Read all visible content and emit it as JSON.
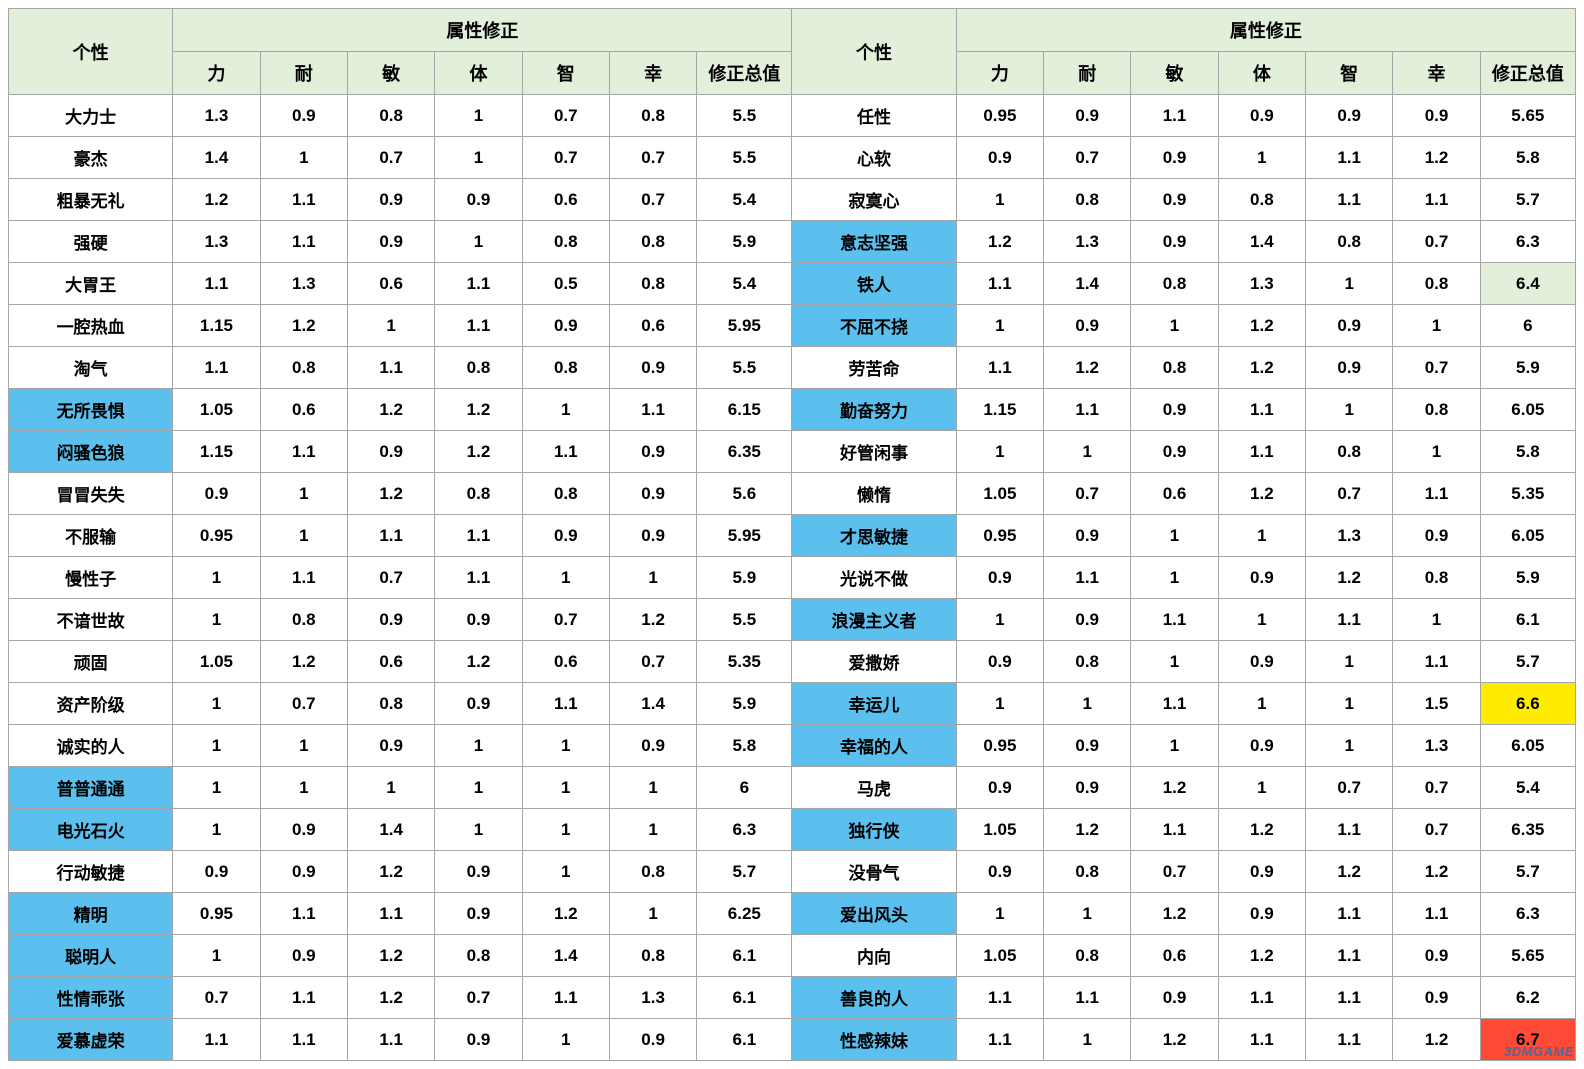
{
  "headers": {
    "personality": "个性",
    "modifier_group": "属性修正",
    "stats": [
      "力",
      "耐",
      "敏",
      "体",
      "智",
      "幸"
    ],
    "total": "修正总值"
  },
  "colors": {
    "header_bg": "#e2efda",
    "highlight_blue": "#5bc0ee",
    "highlight_green": "#e2efda",
    "highlight_yellow": "#ffeb00",
    "highlight_red": "#ff4a36",
    "border": "#a6a6a6"
  },
  "watermark": "3DMGAME",
  "rows_left": [
    {
      "name": "大力士",
      "vals": [
        "1.3",
        "0.9",
        "0.8",
        "1",
        "0.7",
        "0.8"
      ],
      "total": "5.5",
      "name_hl": "",
      "total_hl": ""
    },
    {
      "name": "豪杰",
      "vals": [
        "1.4",
        "1",
        "0.7",
        "1",
        "0.7",
        "0.7"
      ],
      "total": "5.5",
      "name_hl": "",
      "total_hl": ""
    },
    {
      "name": "粗暴无礼",
      "vals": [
        "1.2",
        "1.1",
        "0.9",
        "0.9",
        "0.6",
        "0.7"
      ],
      "total": "5.4",
      "name_hl": "",
      "total_hl": ""
    },
    {
      "name": "强硬",
      "vals": [
        "1.3",
        "1.1",
        "0.9",
        "1",
        "0.8",
        "0.8"
      ],
      "total": "5.9",
      "name_hl": "",
      "total_hl": ""
    },
    {
      "name": "大胃王",
      "vals": [
        "1.1",
        "1.3",
        "0.6",
        "1.1",
        "0.5",
        "0.8"
      ],
      "total": "5.4",
      "name_hl": "",
      "total_hl": ""
    },
    {
      "name": "一腔热血",
      "vals": [
        "1.15",
        "1.2",
        "1",
        "1.1",
        "0.9",
        "0.6"
      ],
      "total": "5.95",
      "name_hl": "",
      "total_hl": ""
    },
    {
      "name": "淘气",
      "vals": [
        "1.1",
        "0.8",
        "1.1",
        "0.8",
        "0.8",
        "0.9"
      ],
      "total": "5.5",
      "name_hl": "",
      "total_hl": ""
    },
    {
      "name": "无所畏惧",
      "vals": [
        "1.05",
        "0.6",
        "1.2",
        "1.2",
        "1",
        "1.1"
      ],
      "total": "6.15",
      "name_hl": "blue",
      "total_hl": ""
    },
    {
      "name": "闷骚色狼",
      "vals": [
        "1.15",
        "1.1",
        "0.9",
        "1.2",
        "1.1",
        "0.9"
      ],
      "total": "6.35",
      "name_hl": "blue",
      "total_hl": ""
    },
    {
      "name": "冒冒失失",
      "vals": [
        "0.9",
        "1",
        "1.2",
        "0.8",
        "0.8",
        "0.9"
      ],
      "total": "5.6",
      "name_hl": "",
      "total_hl": ""
    },
    {
      "name": "不服输",
      "vals": [
        "0.95",
        "1",
        "1.1",
        "1.1",
        "0.9",
        "0.9"
      ],
      "total": "5.95",
      "name_hl": "",
      "total_hl": ""
    },
    {
      "name": "慢性子",
      "vals": [
        "1",
        "1.1",
        "0.7",
        "1.1",
        "1",
        "1"
      ],
      "total": "5.9",
      "name_hl": "",
      "total_hl": ""
    },
    {
      "name": "不谙世故",
      "vals": [
        "1",
        "0.8",
        "0.9",
        "0.9",
        "0.7",
        "1.2"
      ],
      "total": "5.5",
      "name_hl": "",
      "total_hl": ""
    },
    {
      "name": "顽固",
      "vals": [
        "1.05",
        "1.2",
        "0.6",
        "1.2",
        "0.6",
        "0.7"
      ],
      "total": "5.35",
      "name_hl": "",
      "total_hl": ""
    },
    {
      "name": "资产阶级",
      "vals": [
        "1",
        "0.7",
        "0.8",
        "0.9",
        "1.1",
        "1.4"
      ],
      "total": "5.9",
      "name_hl": "",
      "total_hl": ""
    },
    {
      "name": "诚实的人",
      "vals": [
        "1",
        "1",
        "0.9",
        "1",
        "1",
        "0.9"
      ],
      "total": "5.8",
      "name_hl": "",
      "total_hl": ""
    },
    {
      "name": "普普通通",
      "vals": [
        "1",
        "1",
        "1",
        "1",
        "1",
        "1"
      ],
      "total": "6",
      "name_hl": "blue",
      "total_hl": ""
    },
    {
      "name": "电光石火",
      "vals": [
        "1",
        "0.9",
        "1.4",
        "1",
        "1",
        "1"
      ],
      "total": "6.3",
      "name_hl": "blue",
      "total_hl": ""
    },
    {
      "name": "行动敏捷",
      "vals": [
        "0.9",
        "0.9",
        "1.2",
        "0.9",
        "1",
        "0.8"
      ],
      "total": "5.7",
      "name_hl": "",
      "total_hl": ""
    },
    {
      "name": "精明",
      "vals": [
        "0.95",
        "1.1",
        "1.1",
        "0.9",
        "1.2",
        "1"
      ],
      "total": "6.25",
      "name_hl": "blue",
      "total_hl": ""
    },
    {
      "name": "聪明人",
      "vals": [
        "1",
        "0.9",
        "1.2",
        "0.8",
        "1.4",
        "0.8"
      ],
      "total": "6.1",
      "name_hl": "blue",
      "total_hl": ""
    },
    {
      "name": "性情乖张",
      "vals": [
        "0.7",
        "1.1",
        "1.2",
        "0.7",
        "1.1",
        "1.3"
      ],
      "total": "6.1",
      "name_hl": "blue",
      "total_hl": ""
    },
    {
      "name": "爱慕虚荣",
      "vals": [
        "1.1",
        "1.1",
        "1.1",
        "0.9",
        "1",
        "0.9"
      ],
      "total": "6.1",
      "name_hl": "blue",
      "total_hl": ""
    }
  ],
  "rows_right": [
    {
      "name": "任性",
      "vals": [
        "0.95",
        "0.9",
        "1.1",
        "0.9",
        "0.9",
        "0.9"
      ],
      "total": "5.65",
      "name_hl": "",
      "total_hl": ""
    },
    {
      "name": "心软",
      "vals": [
        "0.9",
        "0.7",
        "0.9",
        "1",
        "1.1",
        "1.2"
      ],
      "total": "5.8",
      "name_hl": "",
      "total_hl": ""
    },
    {
      "name": "寂寞心",
      "vals": [
        "1",
        "0.8",
        "0.9",
        "0.8",
        "1.1",
        "1.1"
      ],
      "total": "5.7",
      "name_hl": "",
      "total_hl": ""
    },
    {
      "name": "意志坚强",
      "vals": [
        "1.2",
        "1.3",
        "0.9",
        "1.4",
        "0.8",
        "0.7"
      ],
      "total": "6.3",
      "name_hl": "blue",
      "total_hl": ""
    },
    {
      "name": "铁人",
      "vals": [
        "1.1",
        "1.4",
        "0.8",
        "1.3",
        "1",
        "0.8"
      ],
      "total": "6.4",
      "name_hl": "blue",
      "total_hl": "green"
    },
    {
      "name": "不屈不挠",
      "vals": [
        "1",
        "0.9",
        "1",
        "1.2",
        "0.9",
        "1"
      ],
      "total": "6",
      "name_hl": "blue",
      "total_hl": ""
    },
    {
      "name": "劳苦命",
      "vals": [
        "1.1",
        "1.2",
        "0.8",
        "1.2",
        "0.9",
        "0.7"
      ],
      "total": "5.9",
      "name_hl": "",
      "total_hl": ""
    },
    {
      "name": "勤奋努力",
      "vals": [
        "1.15",
        "1.1",
        "0.9",
        "1.1",
        "1",
        "0.8"
      ],
      "total": "6.05",
      "name_hl": "blue",
      "total_hl": ""
    },
    {
      "name": "好管闲事",
      "vals": [
        "1",
        "1",
        "0.9",
        "1.1",
        "0.8",
        "1"
      ],
      "total": "5.8",
      "name_hl": "",
      "total_hl": ""
    },
    {
      "name": "懒惰",
      "vals": [
        "1.05",
        "0.7",
        "0.6",
        "1.2",
        "0.7",
        "1.1"
      ],
      "total": "5.35",
      "name_hl": "",
      "total_hl": ""
    },
    {
      "name": "才思敏捷",
      "vals": [
        "0.95",
        "0.9",
        "1",
        "1",
        "1.3",
        "0.9"
      ],
      "total": "6.05",
      "name_hl": "blue",
      "total_hl": ""
    },
    {
      "name": "光说不做",
      "vals": [
        "0.9",
        "1.1",
        "1",
        "0.9",
        "1.2",
        "0.8"
      ],
      "total": "5.9",
      "name_hl": "",
      "total_hl": ""
    },
    {
      "name": "浪漫主义者",
      "vals": [
        "1",
        "0.9",
        "1.1",
        "1",
        "1.1",
        "1"
      ],
      "total": "6.1",
      "name_hl": "blue",
      "total_hl": ""
    },
    {
      "name": "爱撒娇",
      "vals": [
        "0.9",
        "0.8",
        "1",
        "0.9",
        "1",
        "1.1"
      ],
      "total": "5.7",
      "name_hl": "",
      "total_hl": ""
    },
    {
      "name": "幸运儿",
      "vals": [
        "1",
        "1",
        "1.1",
        "1",
        "1",
        "1.5"
      ],
      "total": "6.6",
      "name_hl": "blue",
      "total_hl": "yellow"
    },
    {
      "name": "幸福的人",
      "vals": [
        "0.95",
        "0.9",
        "1",
        "0.9",
        "1",
        "1.3"
      ],
      "total": "6.05",
      "name_hl": "blue",
      "total_hl": ""
    },
    {
      "name": "马虎",
      "vals": [
        "0.9",
        "0.9",
        "1.2",
        "1",
        "0.7",
        "0.7"
      ],
      "total": "5.4",
      "name_hl": "",
      "total_hl": ""
    },
    {
      "name": "独行侠",
      "vals": [
        "1.05",
        "1.2",
        "1.1",
        "1.2",
        "1.1",
        "0.7"
      ],
      "total": "6.35",
      "name_hl": "blue",
      "total_hl": ""
    },
    {
      "name": "没骨气",
      "vals": [
        "0.9",
        "0.8",
        "0.7",
        "0.9",
        "1.2",
        "1.2"
      ],
      "total": "5.7",
      "name_hl": "",
      "total_hl": ""
    },
    {
      "name": "爱出风头",
      "vals": [
        "1",
        "1",
        "1.2",
        "0.9",
        "1.1",
        "1.1"
      ],
      "total": "6.3",
      "name_hl": "blue",
      "total_hl": ""
    },
    {
      "name": "内向",
      "vals": [
        "1.05",
        "0.8",
        "0.6",
        "1.2",
        "1.1",
        "0.9"
      ],
      "total": "5.65",
      "name_hl": "",
      "total_hl": ""
    },
    {
      "name": "善良的人",
      "vals": [
        "1.1",
        "1.1",
        "0.9",
        "1.1",
        "1.1",
        "0.9"
      ],
      "total": "6.2",
      "name_hl": "blue",
      "total_hl": ""
    },
    {
      "name": "性感辣妹",
      "vals": [
        "1.1",
        "1",
        "1.2",
        "1.1",
        "1.1",
        "1.2"
      ],
      "total": "6.7",
      "name_hl": "blue",
      "total_hl": "red"
    }
  ]
}
